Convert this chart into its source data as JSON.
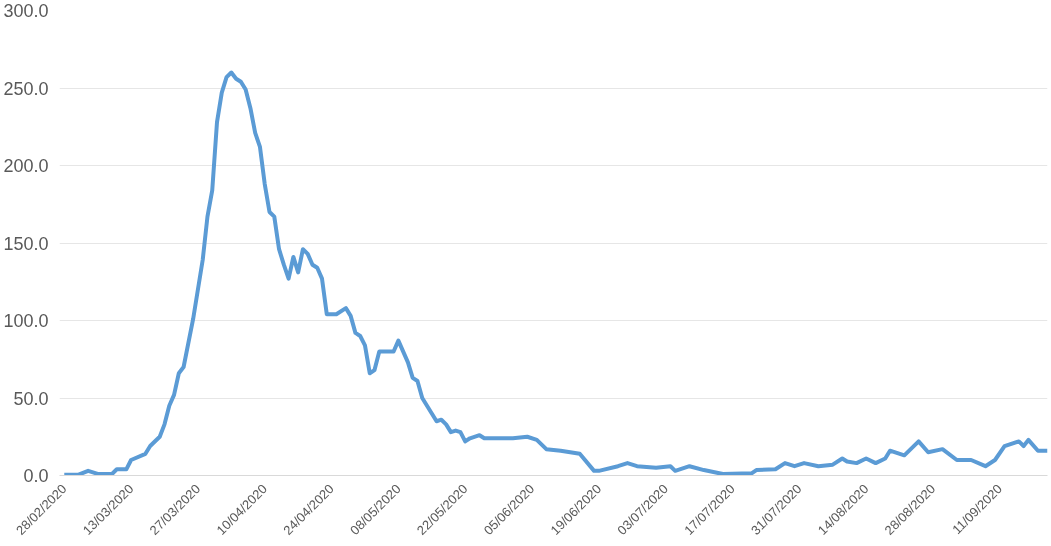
{
  "chart_data": {
    "type": "line",
    "color": "#5b9bd5",
    "grid": "y",
    "line_style": "solid",
    "marker": "none",
    "x": [
      "2020-02-28",
      "2020-03-02",
      "2020-03-04",
      "2020-03-06",
      "2020-03-09",
      "2020-03-10",
      "2020-03-12",
      "2020-03-13",
      "2020-03-16",
      "2020-03-17",
      "2020-03-19",
      "2020-03-20",
      "2020-03-21",
      "2020-03-22",
      "2020-03-23",
      "2020-03-24",
      "2020-03-26",
      "2020-03-28",
      "2020-03-29",
      "2020-03-30",
      "2020-03-31",
      "2020-04-01",
      "2020-04-02",
      "2020-04-03",
      "2020-04-04",
      "2020-04-05",
      "2020-04-06",
      "2020-04-07",
      "2020-04-08",
      "2020-04-09",
      "2020-04-10",
      "2020-04-11",
      "2020-04-12",
      "2020-04-13",
      "2020-04-14",
      "2020-04-15",
      "2020-04-16",
      "2020-04-17",
      "2020-04-18",
      "2020-04-19",
      "2020-04-20",
      "2020-04-21",
      "2020-04-22",
      "2020-04-23",
      "2020-04-25",
      "2020-04-27",
      "2020-04-28",
      "2020-04-29",
      "2020-04-30",
      "2020-05-01",
      "2020-05-02",
      "2020-05-03",
      "2020-05-04",
      "2020-05-06",
      "2020-05-07",
      "2020-05-08",
      "2020-05-10",
      "2020-05-11",
      "2020-05-12",
      "2020-05-13",
      "2020-05-14",
      "2020-05-15",
      "2020-05-16",
      "2020-05-17",
      "2020-05-18",
      "2020-05-19",
      "2020-05-20",
      "2020-05-21",
      "2020-05-22",
      "2020-05-23",
      "2020-05-25",
      "2020-05-26",
      "2020-06-01",
      "2020-06-04",
      "2020-06-06",
      "2020-06-08",
      "2020-06-11",
      "2020-06-15",
      "2020-06-18",
      "2020-06-19",
      "2020-06-23",
      "2020-06-25",
      "2020-06-27",
      "2020-07-01",
      "2020-07-04",
      "2020-07-05",
      "2020-07-08",
      "2020-07-11",
      "2020-07-15",
      "2020-07-21",
      "2020-07-22",
      "2020-07-26",
      "2020-07-28",
      "2020-07-30",
      "2020-08-01",
      "2020-08-04",
      "2020-08-07",
      "2020-08-09",
      "2020-08-10",
      "2020-08-12",
      "2020-08-14",
      "2020-08-16",
      "2020-08-18",
      "2020-08-19",
      "2020-08-22",
      "2020-08-25",
      "2020-08-27",
      "2020-08-30",
      "2020-09-02",
      "2020-09-05",
      "2020-09-08",
      "2020-09-10",
      "2020-09-12",
      "2020-09-15",
      "2020-09-16",
      "2020-09-17",
      "2020-09-19",
      "2020-09-21"
    ],
    "values": [
      0.5,
      0.5,
      3,
      1,
      1,
      4,
      4,
      10,
      14,
      19,
      25,
      33,
      45,
      52,
      66,
      70,
      101,
      139,
      167,
      184,
      228,
      247,
      257,
      260,
      256,
      254,
      249,
      237,
      221,
      212,
      188,
      170,
      167,
      146,
      136,
      127,
      141,
      131,
      146,
      143,
      136,
      134,
      127,
      104,
      104,
      108,
      103,
      92,
      90,
      84,
      66,
      68,
      80,
      80,
      80,
      87,
      73,
      63,
      61,
      50,
      45,
      40,
      35,
      36,
      33,
      28,
      29,
      28,
      22,
      24,
      26,
      24,
      24,
      25,
      23,
      17,
      16,
      14,
      3,
      3,
      6,
      8,
      6,
      5,
      6,
      3,
      6,
      3.5,
      1,
      1.4,
      3.5,
      4,
      8,
      6,
      8,
      6,
      7,
      11,
      9,
      8,
      11,
      8,
      11,
      16,
      13,
      22,
      15,
      17,
      10,
      10,
      6,
      10,
      19,
      22,
      19,
      23,
      16,
      16
    ],
    "xlim": [
      "2020-02-27",
      "2020-09-21"
    ],
    "xticks": [
      {
        "value": "2020-02-28",
        "label": "28/02/2020"
      },
      {
        "value": "2020-03-13",
        "label": "13/03/2020"
      },
      {
        "value": "2020-03-27",
        "label": "27/03/2020"
      },
      {
        "value": "2020-04-10",
        "label": "10/04/2020"
      },
      {
        "value": "2020-04-24",
        "label": "24/04/2020"
      },
      {
        "value": "2020-05-08",
        "label": "08/05/2020"
      },
      {
        "value": "2020-05-22",
        "label": "22/05/2020"
      },
      {
        "value": "2020-06-05",
        "label": "05/06/2020"
      },
      {
        "value": "2020-06-19",
        "label": "19/06/2020"
      },
      {
        "value": "2020-07-03",
        "label": "03/07/2020"
      },
      {
        "value": "2020-07-17",
        "label": "17/07/2020"
      },
      {
        "value": "2020-07-31",
        "label": "31/07/2020"
      },
      {
        "value": "2020-08-14",
        "label": "14/08/2020"
      },
      {
        "value": "2020-08-28",
        "label": "28/08/2020"
      },
      {
        "value": "2020-09-11",
        "label": "11/09/2020"
      }
    ],
    "ylim": [
      0,
      300
    ],
    "yticks": [
      {
        "value": 0,
        "label": "0.0"
      },
      {
        "value": 50,
        "label": "50.0"
      },
      {
        "value": 100,
        "label": "100.0"
      },
      {
        "value": 150,
        "label": "150.0"
      },
      {
        "value": 200,
        "label": "200.0"
      },
      {
        "value": 250,
        "label": "250.0"
      },
      {
        "value": 300,
        "label": "300.0"
      }
    ]
  }
}
